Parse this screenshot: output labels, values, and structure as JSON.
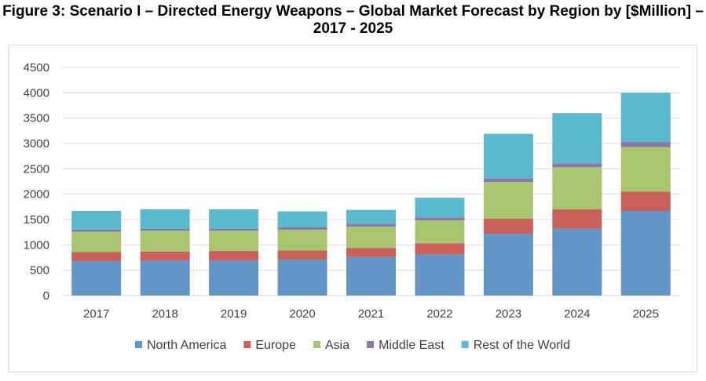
{
  "title": "Figure 3: Scenario I – Directed Energy Weapons – Global Market Forecast by Region by [$Million] – 2017 - 2025",
  "chart_data": {
    "type": "bar",
    "stacked": true,
    "categories": [
      "2017",
      "2018",
      "2019",
      "2020",
      "2021",
      "2022",
      "2023",
      "2024",
      "2025"
    ],
    "series": [
      {
        "name": "North America",
        "color": "#6495c9",
        "values": [
          680,
          690,
          690,
          710,
          760,
          810,
          1220,
          1320,
          1670
        ]
      },
      {
        "name": "Europe",
        "color": "#c9605a",
        "values": [
          180,
          180,
          190,
          180,
          180,
          220,
          300,
          380,
          380
        ]
      },
      {
        "name": "Asia",
        "color": "#a9c56f",
        "values": [
          400,
          410,
          400,
          410,
          420,
          450,
          720,
          830,
          880
        ]
      },
      {
        "name": "Middle East",
        "color": "#8a7aa7",
        "values": [
          40,
          40,
          40,
          50,
          60,
          60,
          70,
          80,
          100
        ]
      },
      {
        "name": "Rest of the World",
        "color": "#5ab8cf",
        "values": [
          370,
          380,
          380,
          310,
          270,
          390,
          880,
          990,
          970
        ]
      }
    ],
    "yticks": [
      "0",
      "500",
      "1000",
      "1500",
      "2000",
      "2500",
      "3000",
      "3500",
      "4000",
      "4500"
    ],
    "ylim": [
      0,
      4500
    ],
    "grid": true,
    "legend_position": "bottom"
  }
}
